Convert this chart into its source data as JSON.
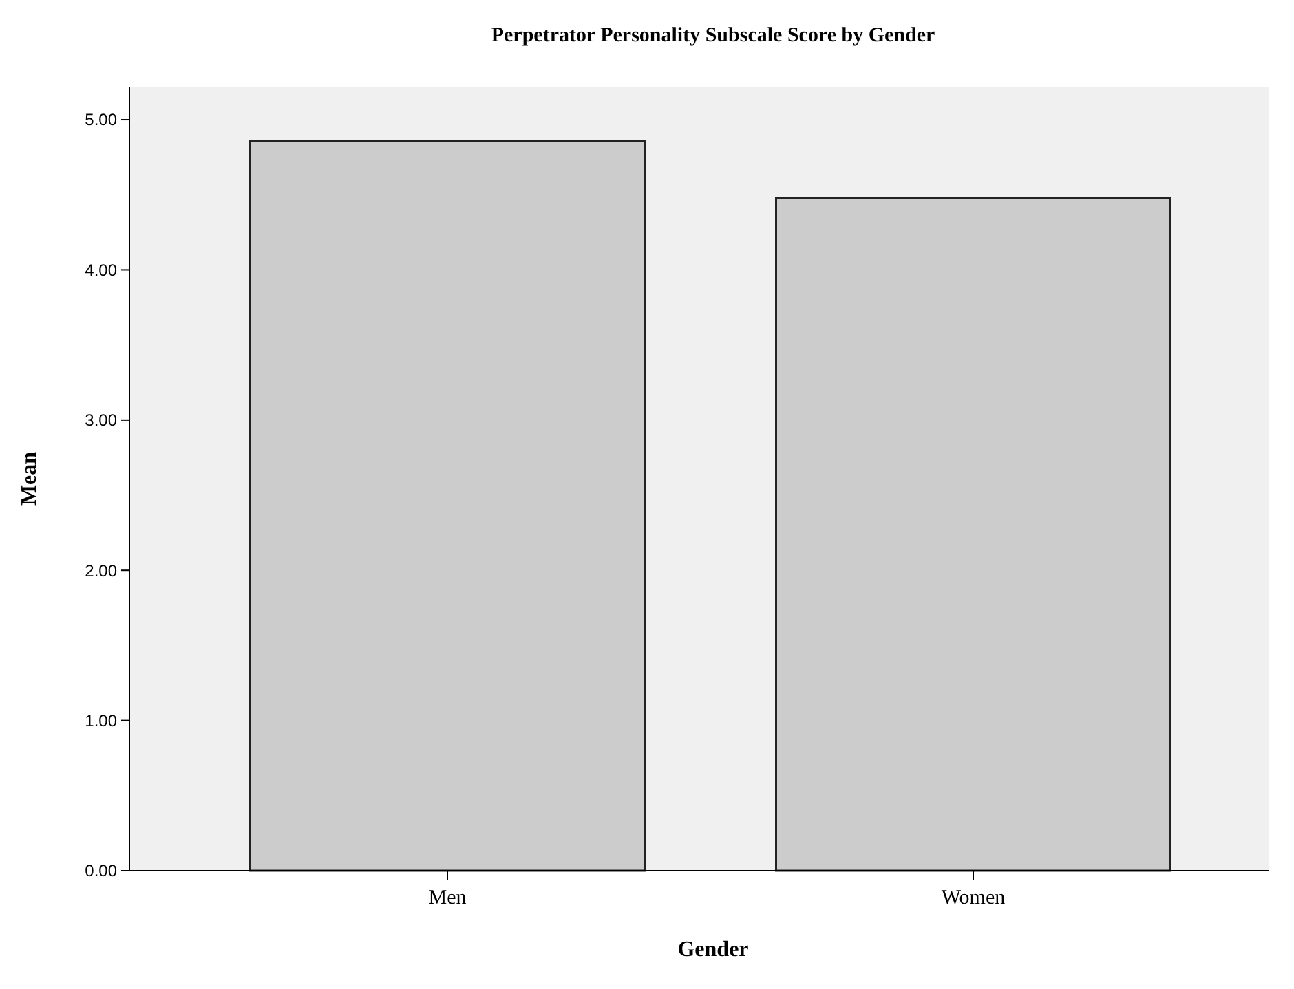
{
  "chart_data": {
    "type": "bar",
    "title": "Perpetrator Personality Subscale Score by Gender",
    "xlabel": "Gender",
    "ylabel": "Mean",
    "categories": [
      "Men",
      "Women"
    ],
    "values": [
      4.86,
      4.48
    ],
    "color": "#cccccc",
    "ylim": [
      0,
      5.22
    ],
    "yticks": [
      {
        "value": 0,
        "label": "0.00"
      },
      {
        "value": 1,
        "label": "1.00"
      },
      {
        "value": 2,
        "label": "2.00"
      },
      {
        "value": 3,
        "label": "3.00"
      },
      {
        "value": 4,
        "label": "4.00"
      },
      {
        "value": 5,
        "label": "5.00"
      }
    ]
  }
}
